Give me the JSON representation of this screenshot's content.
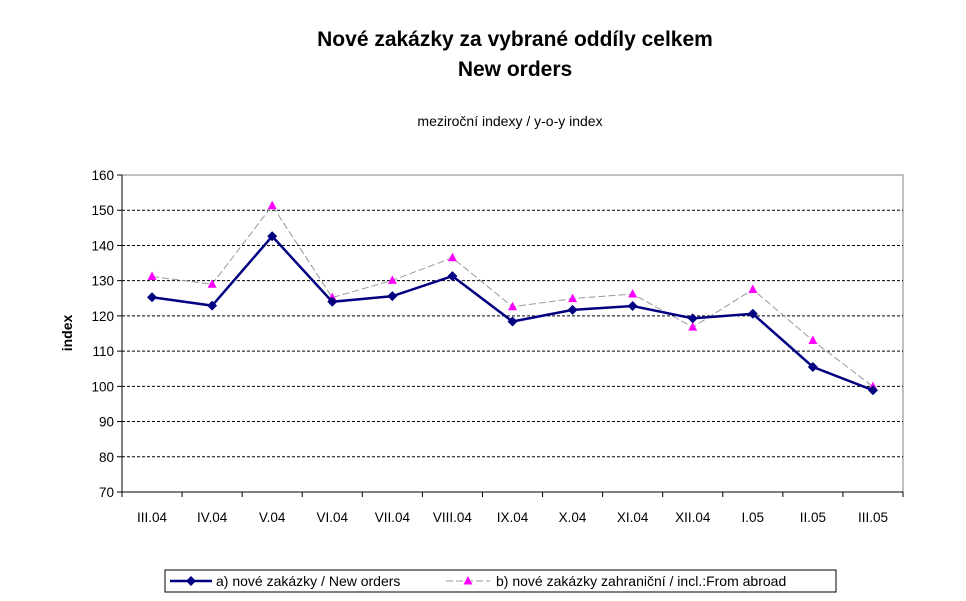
{
  "chart_data": {
    "type": "line",
    "title": "Nové zakázky za vybrané oddíly celkem",
    "subtitle": "New orders",
    "note": "meziroční indexy   /    y-o-y index",
    "xlabel": "",
    "ylabel": "index",
    "ylim": [
      70,
      160
    ],
    "ytick_step": 10,
    "grid": true,
    "legend_position": "bottom",
    "categories": [
      "III.04",
      "IV.04",
      "V.04",
      "VI.04",
      "VII.04",
      "VIII.04",
      "IX.04",
      "X.04",
      "XI.04",
      "XII.04",
      "I.05",
      "II.05",
      "III.05"
    ],
    "series": [
      {
        "name": "a)  nové zakázky  /  New orders",
        "color": "#000080",
        "marker": "diamond",
        "values": [
          125.3,
          122.9,
          142.6,
          124.0,
          125.6,
          131.3,
          118.4,
          121.7,
          122.8,
          119.3,
          120.6,
          105.5,
          98.9
        ]
      },
      {
        "name": "b)  nové zakázky zahraniční / incl.:From abroad",
        "color": "#999999",
        "marker_color": "#ff00ff",
        "marker": "triangle",
        "values": [
          131.2,
          129.0,
          151.3,
          125.2,
          130.1,
          136.5,
          122.6,
          124.9,
          126.2,
          116.8,
          127.5,
          113.0,
          99.9
        ]
      }
    ]
  }
}
